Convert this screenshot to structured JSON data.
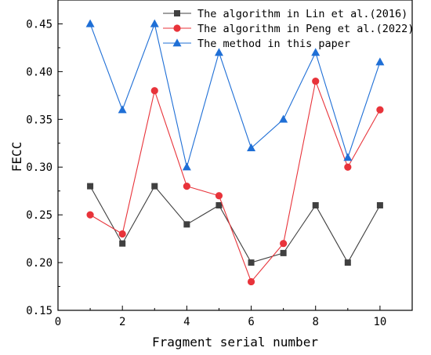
{
  "chart_data": {
    "type": "line",
    "xlabel": "Fragment serial number",
    "ylabel": "FECC",
    "xlim": [
      0,
      11
    ],
    "ylim": [
      0.15,
      0.475
    ],
    "xticks": [
      0,
      2,
      4,
      6,
      8,
      10
    ],
    "yticks": [
      0.15,
      0.2,
      0.25,
      0.3,
      0.35,
      0.4,
      0.45
    ],
    "grid": false,
    "legend_position": "top-right",
    "x": [
      1,
      2,
      3,
      4,
      5,
      6,
      7,
      8,
      9,
      10
    ],
    "series": [
      {
        "name": "The algorithm in Lin et al.(2016)",
        "color": "#404040",
        "marker": "square",
        "values": [
          0.28,
          0.22,
          0.28,
          0.24,
          0.26,
          0.2,
          0.21,
          0.26,
          0.2,
          0.26
        ]
      },
      {
        "name": "The algorithm in Peng et al.(2022)",
        "color": "#e8333a",
        "marker": "circle",
        "values": [
          0.25,
          0.23,
          0.38,
          0.28,
          0.27,
          0.18,
          0.22,
          0.39,
          0.3,
          0.36
        ]
      },
      {
        "name": "The method in this paper",
        "color": "#1f6fd6",
        "marker": "triangle",
        "values": [
          0.45,
          0.36,
          0.45,
          0.3,
          0.42,
          0.32,
          0.35,
          0.42,
          0.31,
          0.41
        ]
      }
    ]
  }
}
